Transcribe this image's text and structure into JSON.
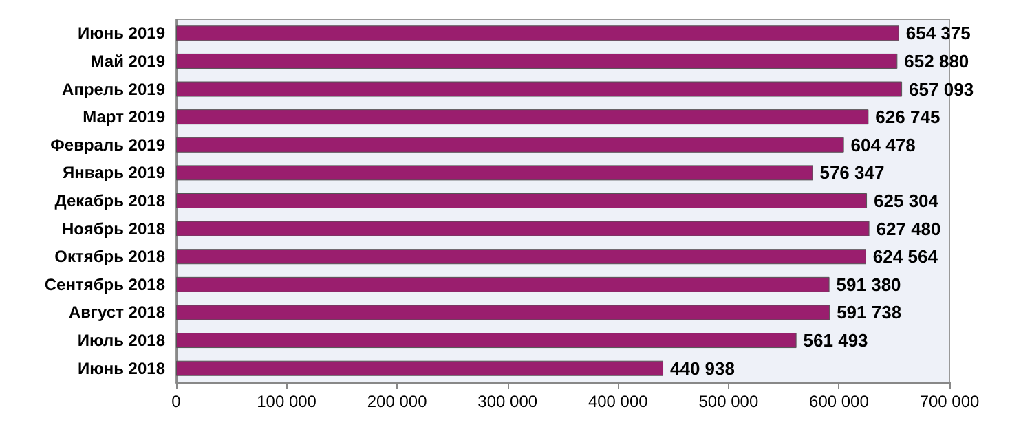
{
  "chart_data": {
    "type": "bar",
    "orientation": "horizontal",
    "categories": [
      "Июнь 2019",
      "Май 2019",
      "Апрель 2019",
      "Март 2019",
      "Февраль 2019",
      "Январь 2019",
      "Декабрь 2018",
      "Ноябрь 2018",
      "Октябрь 2018",
      "Сентябрь 2018",
      "Август 2018",
      "Июль 2018",
      "Июнь 2018"
    ],
    "values": [
      654375,
      652880,
      657093,
      626745,
      604478,
      576347,
      625304,
      627480,
      624564,
      591380,
      591738,
      561493,
      440938
    ],
    "value_labels": [
      "654 375",
      "652 880",
      "657 093",
      "626 745",
      "604 478",
      "576 347",
      "625 304",
      "627 480",
      "624 564",
      "591 380",
      "591 738",
      "561 493",
      "440 938"
    ],
    "color": "#9a1e6e",
    "xlim": [
      0,
      700000
    ],
    "xticks": [
      {
        "value": 0,
        "label": "0"
      },
      {
        "value": 100000,
        "label": "100 000"
      },
      {
        "value": 200000,
        "label": "200 000"
      },
      {
        "value": 300000,
        "label": "300 000"
      },
      {
        "value": 400000,
        "label": "400 000"
      },
      {
        "value": 500000,
        "label": "500 000"
      },
      {
        "value": 600000,
        "label": "600 000"
      },
      {
        "value": 700000,
        "label": "700 000"
      }
    ],
    "grid": false
  }
}
